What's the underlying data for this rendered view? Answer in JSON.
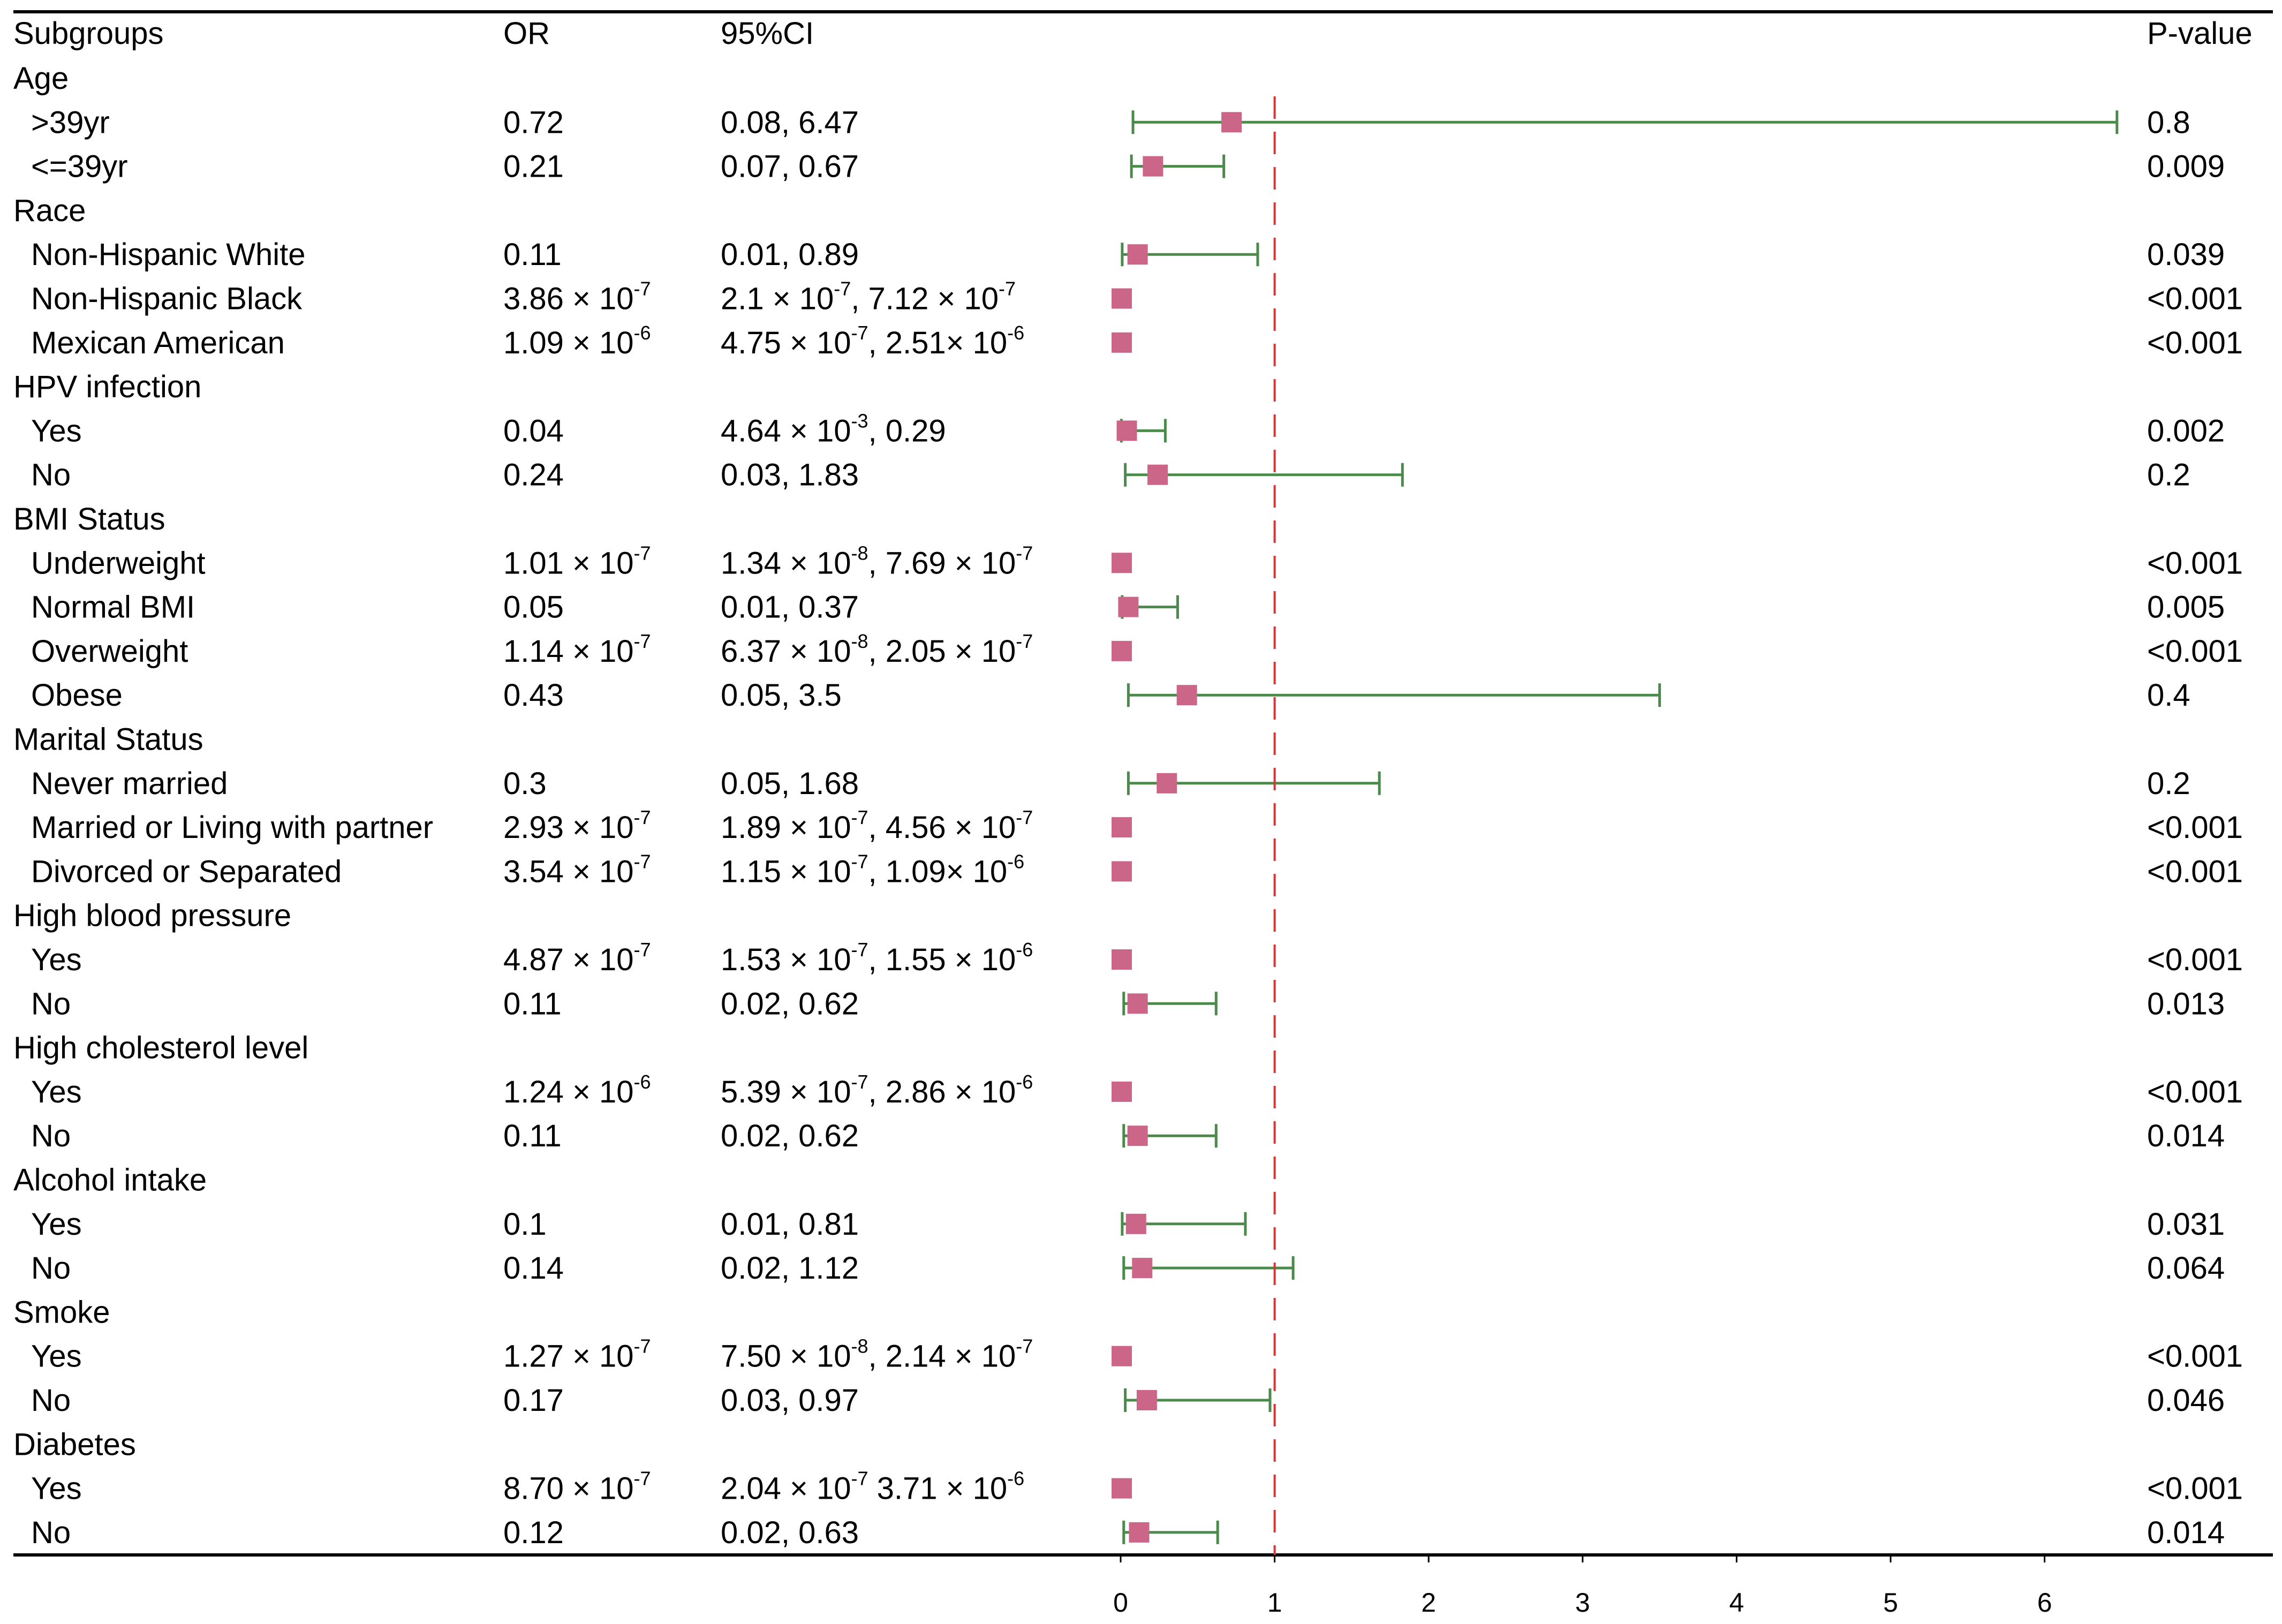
{
  "chart_data": {
    "type": "forest",
    "headers": {
      "subgroups": "Subgroups",
      "or": "OR",
      "ci": "95%CI",
      "p": "P-value"
    },
    "x_ticks": [
      0,
      1,
      2,
      3,
      4,
      5,
      6
    ],
    "xlim": [
      0,
      6.5
    ],
    "reference_line": 1,
    "colors": {
      "marker": "#cc6688",
      "ci_line": "#4a8a4a",
      "ref_line": "#dd3333",
      "rule": "#000000"
    },
    "rows": [
      {
        "kind": "group",
        "label": "Age"
      },
      {
        "kind": "sub",
        "label": ">39yr",
        "or": [
          [
            "0.72"
          ]
        ],
        "ci": [
          [
            "0.08, 6.47"
          ]
        ],
        "p": "0.8",
        "est": 0.72,
        "lo": 0.08,
        "hi": 6.47
      },
      {
        "kind": "sub",
        "label": "<=39yr",
        "or": [
          [
            "0.21"
          ]
        ],
        "ci": [
          [
            "0.07, 0.67"
          ]
        ],
        "p": "0.009",
        "est": 0.21,
        "lo": 0.07,
        "hi": 0.67
      },
      {
        "kind": "group",
        "label": "Race"
      },
      {
        "kind": "sub",
        "label": "Non-Hispanic White",
        "or": [
          [
            "0.11"
          ]
        ],
        "ci": [
          [
            "0.01, 0.89"
          ]
        ],
        "p": "0.039",
        "est": 0.11,
        "lo": 0.01,
        "hi": 0.89
      },
      {
        "kind": "sub",
        "label": "Non-Hispanic Black",
        "or": [
          [
            "3.86 × 10"
          ],
          [
            "-7",
            1
          ]
        ],
        "ci": [
          [
            "2.1 × 10"
          ],
          [
            "-7",
            1
          ],
          [
            ", 7.12 × 10"
          ],
          [
            "-7",
            1
          ]
        ],
        "p": "<0.001",
        "est": 3.86e-07,
        "lo": 2.1e-07,
        "hi": 7.12e-07
      },
      {
        "kind": "sub",
        "label": "Mexican American",
        "or": [
          [
            "1.09 × 10"
          ],
          [
            "-6",
            1
          ]
        ],
        "ci": [
          [
            "4.75 × 10"
          ],
          [
            "-7",
            1
          ],
          [
            ", 2.51× 10"
          ],
          [
            "-6",
            1
          ]
        ],
        "p": "<0.001",
        "est": 1.09e-06,
        "lo": 4.75e-07,
        "hi": 2.51e-06
      },
      {
        "kind": "group",
        "label": "HPV infection"
      },
      {
        "kind": "sub",
        "label": "Yes",
        "or": [
          [
            "0.04"
          ]
        ],
        "ci": [
          [
            "4.64 × 10"
          ],
          [
            "-3",
            1
          ],
          [
            ", 0.29"
          ]
        ],
        "p": "0.002",
        "est": 0.04,
        "lo": 0.00464,
        "hi": 0.29
      },
      {
        "kind": "sub",
        "label": "No",
        "or": [
          [
            "0.24"
          ]
        ],
        "ci": [
          [
            "0.03, 1.83"
          ]
        ],
        "p": "0.2",
        "est": 0.24,
        "lo": 0.03,
        "hi": 1.83
      },
      {
        "kind": "group",
        "label": "BMI Status"
      },
      {
        "kind": "sub",
        "label": "Underweight",
        "or": [
          [
            "1.01 × 10"
          ],
          [
            "-7",
            1
          ]
        ],
        "ci": [
          [
            "1.34 × 10"
          ],
          [
            "-8",
            1
          ],
          [
            ", 7.69 × 10"
          ],
          [
            "-7",
            1
          ]
        ],
        "p": "<0.001",
        "est": 1.01e-07,
        "lo": 1.34e-08,
        "hi": 7.69e-07
      },
      {
        "kind": "sub",
        "label": "Normal BMI",
        "or": [
          [
            "0.05"
          ]
        ],
        "ci": [
          [
            "0.01, 0.37"
          ]
        ],
        "p": "0.005",
        "est": 0.05,
        "lo": 0.01,
        "hi": 0.37
      },
      {
        "kind": "sub",
        "label": "Overweight",
        "or": [
          [
            "1.14 × 10"
          ],
          [
            "-7",
            1
          ]
        ],
        "ci": [
          [
            "6.37 × 10"
          ],
          [
            "-8",
            1
          ],
          [
            ", 2.05 × 10"
          ],
          [
            "-7",
            1
          ]
        ],
        "p": "<0.001",
        "est": 1.14e-07,
        "lo": 6.37e-08,
        "hi": 2.05e-07
      },
      {
        "kind": "sub",
        "label": "Obese",
        "or": [
          [
            "0.43"
          ]
        ],
        "ci": [
          [
            "0.05, 3.5"
          ]
        ],
        "p": "0.4",
        "est": 0.43,
        "lo": 0.05,
        "hi": 3.5
      },
      {
        "kind": "group",
        "label": "Marital Status"
      },
      {
        "kind": "sub",
        "label": "Never married",
        "or": [
          [
            "0.3"
          ]
        ],
        "ci": [
          [
            "0.05, 1.68"
          ]
        ],
        "p": "0.2",
        "est": 0.3,
        "lo": 0.05,
        "hi": 1.68
      },
      {
        "kind": "sub",
        "label": "Married or Living with partner",
        "or": [
          [
            "2.93 × 10"
          ],
          [
            "-7",
            1
          ]
        ],
        "ci": [
          [
            "1.89 × 10"
          ],
          [
            "-7",
            1
          ],
          [
            ", 4.56 × 10"
          ],
          [
            "-7",
            1
          ]
        ],
        "p": "<0.001",
        "est": 2.93e-07,
        "lo": 1.89e-07,
        "hi": 4.56e-07
      },
      {
        "kind": "sub",
        "label": "Divorced or Separated",
        "or": [
          [
            "3.54 × 10"
          ],
          [
            "-7",
            1
          ]
        ],
        "ci": [
          [
            "1.15 × 10"
          ],
          [
            "-7",
            1
          ],
          [
            ", 1.09× 10"
          ],
          [
            "-6",
            1
          ]
        ],
        "p": "<0.001",
        "est": 3.54e-07,
        "lo": 1.15e-07,
        "hi": 1.09e-06
      },
      {
        "kind": "group",
        "label": "High blood pressure"
      },
      {
        "kind": "sub",
        "label": "Yes",
        "or": [
          [
            "4.87 × 10"
          ],
          [
            "-7",
            1
          ]
        ],
        "ci": [
          [
            "1.53 × 10"
          ],
          [
            "-7",
            1
          ],
          [
            ", 1.55 × 10"
          ],
          [
            "-6",
            1
          ]
        ],
        "p": "<0.001",
        "est": 4.87e-07,
        "lo": 1.53e-07,
        "hi": 1.55e-06
      },
      {
        "kind": "sub",
        "label": "No",
        "or": [
          [
            "0.11"
          ]
        ],
        "ci": [
          [
            "0.02, 0.62"
          ]
        ],
        "p": "0.013",
        "est": 0.11,
        "lo": 0.02,
        "hi": 0.62
      },
      {
        "kind": "group",
        "label": "High cholesterol level"
      },
      {
        "kind": "sub",
        "label": "Yes",
        "or": [
          [
            "1.24 × 10"
          ],
          [
            "-6",
            1
          ]
        ],
        "ci": [
          [
            "5.39 × 10"
          ],
          [
            "-7",
            1
          ],
          [
            ", 2.86 × 10"
          ],
          [
            "-6",
            1
          ]
        ],
        "p": "<0.001",
        "est": 1.24e-06,
        "lo": 5.39e-07,
        "hi": 2.86e-06
      },
      {
        "kind": "sub",
        "label": "No",
        "or": [
          [
            "0.11"
          ]
        ],
        "ci": [
          [
            "0.02, 0.62"
          ]
        ],
        "p": "0.014",
        "est": 0.11,
        "lo": 0.02,
        "hi": 0.62
      },
      {
        "kind": "group",
        "label": "Alcohol intake"
      },
      {
        "kind": "sub",
        "label": "Yes",
        "or": [
          [
            "0.1"
          ]
        ],
        "ci": [
          [
            "0.01, 0.81"
          ]
        ],
        "p": "0.031",
        "est": 0.1,
        "lo": 0.01,
        "hi": 0.81
      },
      {
        "kind": "sub",
        "label": "No",
        "or": [
          [
            "0.14"
          ]
        ],
        "ci": [
          [
            "0.02, 1.12"
          ]
        ],
        "p": "0.064",
        "est": 0.14,
        "lo": 0.02,
        "hi": 1.12
      },
      {
        "kind": "group",
        "label": "Smoke"
      },
      {
        "kind": "sub",
        "label": "Yes",
        "or": [
          [
            "1.27 × 10"
          ],
          [
            "-7",
            1
          ]
        ],
        "ci": [
          [
            "7.50 × 10"
          ],
          [
            "-8",
            1
          ],
          [
            ", 2.14 × 10"
          ],
          [
            "-7",
            1
          ]
        ],
        "p": "<0.001",
        "est": 1.27e-07,
        "lo": 7.5e-08,
        "hi": 2.14e-07
      },
      {
        "kind": "sub",
        "label": "No",
        "or": [
          [
            "0.17"
          ]
        ],
        "ci": [
          [
            "0.03, 0.97"
          ]
        ],
        "p": "0.046",
        "est": 0.17,
        "lo": 0.03,
        "hi": 0.97
      },
      {
        "kind": "group",
        "label": "Diabetes"
      },
      {
        "kind": "sub",
        "label": "Yes",
        "or": [
          [
            "8.70 × 10"
          ],
          [
            "-7",
            1
          ]
        ],
        "ci": [
          [
            "2.04 × 10"
          ],
          [
            "-7",
            1
          ],
          [
            " 3.71 × 10"
          ],
          [
            "-6",
            1
          ]
        ],
        "p": "<0.001",
        "est": 8.7e-07,
        "lo": 2.04e-07,
        "hi": 3.71e-06
      },
      {
        "kind": "sub",
        "label": "No",
        "or": [
          [
            "0.12"
          ]
        ],
        "ci": [
          [
            "0.02, 0.63"
          ]
        ],
        "p": "0.014",
        "est": 0.12,
        "lo": 0.02,
        "hi": 0.63
      }
    ]
  }
}
